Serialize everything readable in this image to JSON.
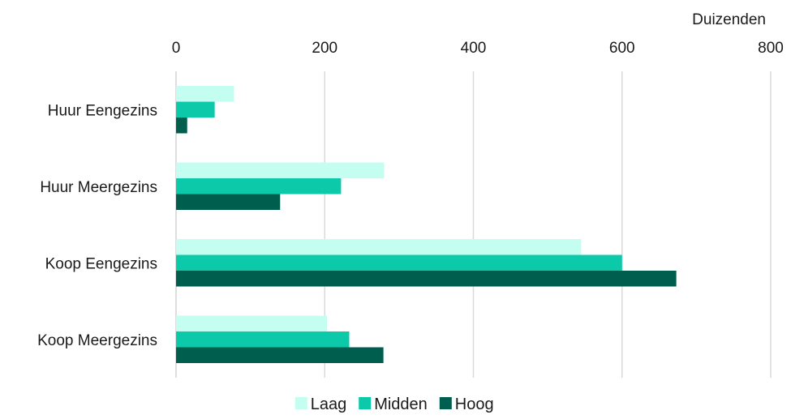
{
  "chart_data": {
    "type": "bar",
    "orientation": "horizontal",
    "unit_label": "Duizenden",
    "categories": [
      "Huur Eengezins",
      "Huur Meergezins",
      "Koop Eengezins",
      "Koop Meergezins"
    ],
    "series": [
      {
        "name": "Laag",
        "color": "#c4fef0",
        "values": [
          78,
          280,
          545,
          203
        ]
      },
      {
        "name": "Midden",
        "color": "#0cc9a9",
        "values": [
          52,
          222,
          600,
          233
        ]
      },
      {
        "name": "Hoog",
        "color": "#005e4e",
        "values": [
          15,
          140,
          673,
          279
        ]
      }
    ],
    "xlim": [
      0,
      800
    ],
    "xticks": [
      "0",
      "200",
      "400",
      "600",
      "800"
    ],
    "grid": true,
    "x_axis_position": "top",
    "legend_position": "bottom"
  }
}
